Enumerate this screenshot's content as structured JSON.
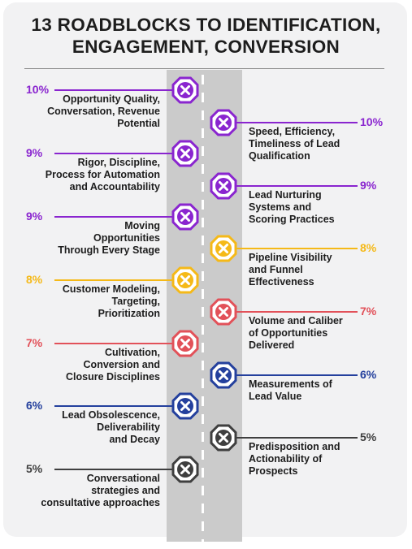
{
  "title_lines": [
    "13 ROADBLOCKS TO IDENTIFICATION,",
    "ENGAGEMENT, CONVERSION"
  ],
  "colors": {
    "purple": "#8a25cf",
    "gold": "#f5b918",
    "red": "#e25159",
    "blue": "#24409d",
    "gray": "#3f3f3f"
  },
  "items": [
    {
      "side": "left",
      "pct": "10%",
      "color": "purple",
      "lines": [
        "Opportunity Quality,",
        "Conversation, Revenue",
        "Potential"
      ]
    },
    {
      "side": "right",
      "pct": "10%",
      "color": "purple",
      "lines": [
        "Speed, Efficiency,",
        "Timeliness of Lead",
        "Qualification"
      ]
    },
    {
      "side": "left",
      "pct": "9%",
      "color": "purple",
      "lines": [
        "Rigor, Discipline,",
        "Process for Automation",
        "and Accountability"
      ]
    },
    {
      "side": "right",
      "pct": "9%",
      "color": "purple",
      "lines": [
        "Lead Nurturing",
        "Systems and",
        "Scoring Practices"
      ]
    },
    {
      "side": "left",
      "pct": "9%",
      "color": "purple",
      "lines": [
        "Moving",
        "Opportunities",
        "Through Every Stage"
      ]
    },
    {
      "side": "right",
      "pct": "8%",
      "color": "gold",
      "lines": [
        "Pipeline Visibility",
        "and Funnel",
        "Effectiveness"
      ]
    },
    {
      "side": "left",
      "pct": "8%",
      "color": "gold",
      "lines": [
        "Customer Modeling,",
        "Targeting,",
        "Prioritization"
      ]
    },
    {
      "side": "right",
      "pct": "7%",
      "color": "red",
      "lines": [
        "Volume and Caliber",
        "of Opportunities",
        "Delivered"
      ]
    },
    {
      "side": "left",
      "pct": "7%",
      "color": "red",
      "lines": [
        "Cultivation,",
        "Conversion and",
        "Closure Disciplines"
      ]
    },
    {
      "side": "right",
      "pct": "6%",
      "color": "blue",
      "lines": [
        "Measurements of",
        "Lead Value"
      ]
    },
    {
      "side": "left",
      "pct": "6%",
      "color": "blue",
      "lines": [
        "Lead Obsolescence,",
        "Deliverability",
        "and Decay"
      ]
    },
    {
      "side": "right",
      "pct": "5%",
      "color": "gray",
      "lines": [
        "Predisposition and",
        "Actionability of",
        "Prospects"
      ]
    },
    {
      "side": "left",
      "pct": "5%",
      "color": "gray",
      "lines": [
        "Conversational",
        "strategies and",
        "consultative approaches"
      ]
    }
  ]
}
